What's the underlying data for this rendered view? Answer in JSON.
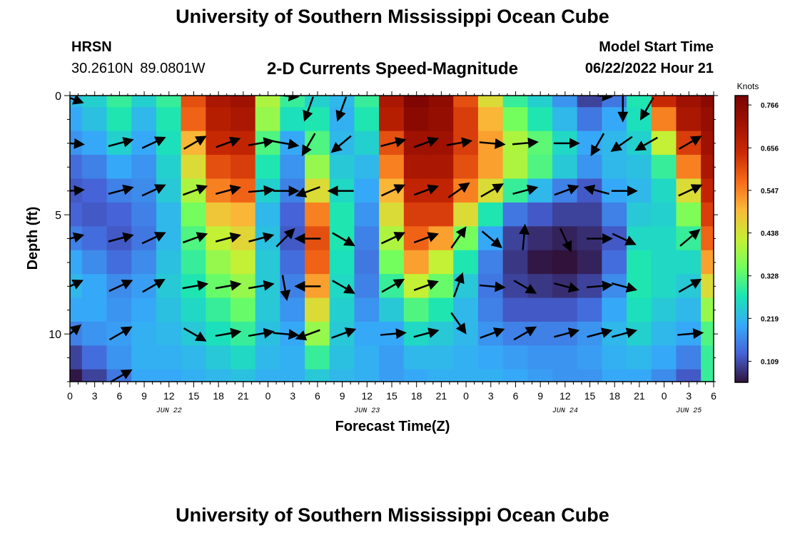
{
  "header": {
    "title": "University of Southern Mississippi Ocean Cube",
    "station": "HRSN",
    "coordinates": "30.2610N  89.0801W",
    "subtitle": "2-D Currents Speed-Magnitude",
    "model_start_label": "Model Start Time",
    "model_start_value": "06/22/2022 Hour 21"
  },
  "footer": {
    "title": "University of Southern Mississippi Ocean Cube"
  },
  "chart_data": {
    "type": "heatmap",
    "title": "2-D Currents Speed-Magnitude",
    "xlabel": "Forecast Time(Z)",
    "ylabel": "Depth (ft)",
    "x_units": "hours since Jun 22 00Z",
    "xlim": [
      0,
      78
    ],
    "ylim": [
      0,
      12
    ],
    "x_ticks": [
      0,
      3,
      6,
      9,
      12,
      15,
      18,
      21,
      24,
      27,
      30,
      33,
      36,
      39,
      42,
      45,
      48,
      51,
      54,
      57,
      60,
      63,
      66,
      69,
      72,
      75,
      78
    ],
    "x_tick_labels": [
      "0",
      "3",
      "6",
      "9",
      "12",
      "15",
      "18",
      "21",
      "0",
      "3",
      "6",
      "9",
      "12",
      "15",
      "18",
      "21",
      "0",
      "3",
      "6",
      "9",
      "12",
      "15",
      "18",
      "21",
      "0",
      "3",
      "6"
    ],
    "date_labels": [
      {
        "text": "JUN 22",
        "x": 12
      },
      {
        "text": "JUN 23",
        "x": 36
      },
      {
        "text": "JUN 24",
        "x": 60
      },
      {
        "text": "JUN 25",
        "x": 75
      }
    ],
    "y_ticks": [
      0,
      5,
      10
    ],
    "y_tick_labels": [
      "0",
      "5",
      "10"
    ],
    "colorbar": {
      "units": "Knots",
      "min": 0.055,
      "max": 0.79,
      "tick_values": [
        0.766,
        0.656,
        0.547,
        0.438,
        0.328,
        0.219,
        0.109
      ],
      "tick_labels": [
        "0.766",
        "0.656",
        "0.547",
        "0.438",
        "0.328",
        "0.219",
        "0.109"
      ]
    },
    "speed_grid": {
      "times": [
        0,
        3,
        6,
        9,
        12,
        15,
        18,
        21,
        24,
        27,
        30,
        33,
        36,
        39,
        42,
        45,
        48,
        51,
        54,
        57,
        60,
        63,
        66,
        69,
        72,
        75,
        78
      ],
      "depths": [
        0,
        1,
        2,
        3,
        4,
        5,
        6,
        7,
        8,
        9,
        10,
        11,
        12
      ],
      "values": [
        [
          0.22,
          0.25,
          0.3,
          0.25,
          0.3,
          0.6,
          0.7,
          0.72,
          0.4,
          0.3,
          0.25,
          0.22,
          0.3,
          0.7,
          0.78,
          0.75,
          0.6,
          0.45,
          0.3,
          0.25,
          0.18,
          0.1,
          0.15,
          0.28,
          0.65,
          0.72,
          0.76
        ],
        [
          0.2,
          0.23,
          0.28,
          0.22,
          0.28,
          0.58,
          0.68,
          0.7,
          0.38,
          0.27,
          0.28,
          0.21,
          0.28,
          0.68,
          0.76,
          0.74,
          0.62,
          0.5,
          0.35,
          0.28,
          0.22,
          0.15,
          0.2,
          0.27,
          0.55,
          0.7,
          0.74
        ],
        [
          0.18,
          0.2,
          0.25,
          0.2,
          0.27,
          0.5,
          0.65,
          0.66,
          0.32,
          0.2,
          0.32,
          0.22,
          0.25,
          0.6,
          0.72,
          0.72,
          0.62,
          0.52,
          0.4,
          0.33,
          0.26,
          0.2,
          0.22,
          0.25,
          0.42,
          0.62,
          0.72
        ],
        [
          0.14,
          0.16,
          0.2,
          0.18,
          0.25,
          0.45,
          0.6,
          0.62,
          0.28,
          0.18,
          0.38,
          0.24,
          0.22,
          0.55,
          0.7,
          0.7,
          0.6,
          0.52,
          0.4,
          0.32,
          0.24,
          0.18,
          0.22,
          0.23,
          0.3,
          0.55,
          0.7
        ],
        [
          0.12,
          0.13,
          0.16,
          0.17,
          0.24,
          0.4,
          0.55,
          0.58,
          0.25,
          0.16,
          0.45,
          0.26,
          0.2,
          0.5,
          0.66,
          0.66,
          0.55,
          0.45,
          0.3,
          0.22,
          0.16,
          0.12,
          0.2,
          0.22,
          0.26,
          0.45,
          0.66
        ],
        [
          0.13,
          0.12,
          0.13,
          0.16,
          0.22,
          0.35,
          0.48,
          0.5,
          0.22,
          0.13,
          0.55,
          0.28,
          0.18,
          0.45,
          0.62,
          0.62,
          0.45,
          0.28,
          0.15,
          0.12,
          0.1,
          0.1,
          0.16,
          0.24,
          0.25,
          0.36,
          0.62
        ],
        [
          0.16,
          0.14,
          0.12,
          0.15,
          0.22,
          0.32,
          0.42,
          0.46,
          0.23,
          0.12,
          0.6,
          0.28,
          0.16,
          0.4,
          0.58,
          0.52,
          0.35,
          0.2,
          0.1,
          0.08,
          0.07,
          0.08,
          0.12,
          0.26,
          0.26,
          0.3,
          0.58
        ],
        [
          0.2,
          0.17,
          0.14,
          0.17,
          0.23,
          0.3,
          0.38,
          0.42,
          0.24,
          0.14,
          0.58,
          0.27,
          0.15,
          0.35,
          0.52,
          0.42,
          0.28,
          0.16,
          0.09,
          0.06,
          0.05,
          0.07,
          0.14,
          0.28,
          0.26,
          0.26,
          0.52
        ],
        [
          0.22,
          0.2,
          0.17,
          0.19,
          0.24,
          0.28,
          0.34,
          0.38,
          0.24,
          0.16,
          0.52,
          0.26,
          0.16,
          0.3,
          0.42,
          0.34,
          0.24,
          0.15,
          0.1,
          0.09,
          0.08,
          0.1,
          0.17,
          0.28,
          0.26,
          0.24,
          0.45
        ],
        [
          0.2,
          0.2,
          0.18,
          0.2,
          0.23,
          0.26,
          0.3,
          0.34,
          0.24,
          0.18,
          0.45,
          0.25,
          0.18,
          0.24,
          0.32,
          0.28,
          0.22,
          0.16,
          0.12,
          0.12,
          0.12,
          0.14,
          0.2,
          0.27,
          0.24,
          0.22,
          0.38
        ],
        [
          0.16,
          0.18,
          0.19,
          0.21,
          0.22,
          0.24,
          0.27,
          0.3,
          0.23,
          0.2,
          0.38,
          0.24,
          0.2,
          0.2,
          0.26,
          0.24,
          0.22,
          0.18,
          0.16,
          0.16,
          0.16,
          0.18,
          0.22,
          0.25,
          0.22,
          0.2,
          0.32
        ],
        [
          0.1,
          0.14,
          0.18,
          0.21,
          0.21,
          0.22,
          0.24,
          0.26,
          0.22,
          0.21,
          0.3,
          0.23,
          0.21,
          0.19,
          0.22,
          0.22,
          0.21,
          0.2,
          0.19,
          0.18,
          0.18,
          0.19,
          0.21,
          0.22,
          0.2,
          0.16,
          0.3
        ],
        [
          0.06,
          0.1,
          0.15,
          0.2,
          0.2,
          0.21,
          0.22,
          0.23,
          0.21,
          0.21,
          0.24,
          0.22,
          0.21,
          0.19,
          0.2,
          0.21,
          0.21,
          0.21,
          0.2,
          0.19,
          0.18,
          0.18,
          0.2,
          0.2,
          0.17,
          0.12,
          0.3
        ]
      ]
    },
    "vectors": [
      {
        "t": 0,
        "d": 0.1,
        "dir": 110
      },
      {
        "t": 0,
        "d": 2,
        "dir": 95
      },
      {
        "t": 0,
        "d": 4,
        "dir": 85
      },
      {
        "t": 0,
        "d": 6,
        "dir": 75
      },
      {
        "t": 0,
        "d": 8,
        "dir": 65
      },
      {
        "t": 0,
        "d": 10,
        "dir": 50
      },
      {
        "t": 6,
        "d": 2,
        "dir": 75
      },
      {
        "t": 6,
        "d": 4,
        "dir": 75
      },
      {
        "t": 6,
        "d": 6,
        "dir": 75
      },
      {
        "t": 6,
        "d": 8,
        "dir": 65
      },
      {
        "t": 6,
        "d": 10,
        "dir": 60
      },
      {
        "t": 6,
        "d": 11.8,
        "dir": 60
      },
      {
        "t": 10,
        "d": 2,
        "dir": 65
      },
      {
        "t": 10,
        "d": 4,
        "dir": 65
      },
      {
        "t": 10,
        "d": 6,
        "dir": 65
      },
      {
        "t": 10,
        "d": 8,
        "dir": 60
      },
      {
        "t": 15,
        "d": 2,
        "dir": 60
      },
      {
        "t": 15,
        "d": 4,
        "dir": 70
      },
      {
        "t": 15,
        "d": 6,
        "dir": 70
      },
      {
        "t": 15,
        "d": 8,
        "dir": 80
      },
      {
        "t": 15,
        "d": 10,
        "dir": 120
      },
      {
        "t": 19,
        "d": 2,
        "dir": 70
      },
      {
        "t": 19,
        "d": 4,
        "dir": 75
      },
      {
        "t": 19,
        "d": 6,
        "dir": 75
      },
      {
        "t": 19,
        "d": 8,
        "dir": 80
      },
      {
        "t": 19,
        "d": 10,
        "dir": 80
      },
      {
        "t": 23,
        "d": 2,
        "dir": 80
      },
      {
        "t": 23,
        "d": 4,
        "dir": 85
      },
      {
        "t": 23,
        "d": 6,
        "dir": 75
      },
      {
        "t": 23,
        "d": 8,
        "dir": 80
      },
      {
        "t": 23,
        "d": 10,
        "dir": 80
      },
      {
        "t": 26,
        "d": 0,
        "dir": 95
      },
      {
        "t": 26,
        "d": 2,
        "dir": 100
      },
      {
        "t": 26,
        "d": 4,
        "dir": 90
      },
      {
        "t": 26,
        "d": 6,
        "dir": 45
      },
      {
        "t": 26,
        "d": 8,
        "dir": 170
      },
      {
        "t": 26,
        "d": 10,
        "dir": 95
      },
      {
        "t": 29,
        "d": 0.5,
        "dir": 200
      },
      {
        "t": 29,
        "d": 2,
        "dir": 210
      },
      {
        "t": 29,
        "d": 4,
        "dir": 250
      },
      {
        "t": 29,
        "d": 6,
        "dir": 270
      },
      {
        "t": 29,
        "d": 8,
        "dir": 270
      },
      {
        "t": 29,
        "d": 10,
        "dir": 250
      },
      {
        "t": 33,
        "d": 0.5,
        "dir": 200
      },
      {
        "t": 33,
        "d": 2,
        "dir": 230
      },
      {
        "t": 33,
        "d": 4,
        "dir": 270
      },
      {
        "t": 33,
        "d": 6,
        "dir": 120
      },
      {
        "t": 33,
        "d": 8,
        "dir": 120
      },
      {
        "t": 33,
        "d": 10,
        "dir": 70
      },
      {
        "t": 39,
        "d": 2,
        "dir": 75
      },
      {
        "t": 39,
        "d": 4,
        "dir": 65
      },
      {
        "t": 39,
        "d": 6,
        "dir": 65
      },
      {
        "t": 39,
        "d": 8,
        "dir": 60
      },
      {
        "t": 39,
        "d": 10,
        "dir": 85
      },
      {
        "t": 43,
        "d": 2,
        "dir": 70
      },
      {
        "t": 43,
        "d": 4,
        "dir": 70
      },
      {
        "t": 43,
        "d": 6,
        "dir": 70
      },
      {
        "t": 43,
        "d": 8,
        "dir": 70
      },
      {
        "t": 43,
        "d": 10,
        "dir": 75
      },
      {
        "t": 47,
        "d": 2,
        "dir": 80
      },
      {
        "t": 47,
        "d": 4,
        "dir": 55
      },
      {
        "t": 47,
        "d": 6,
        "dir": 35
      },
      {
        "t": 47,
        "d": 8,
        "dir": 20
      },
      {
        "t": 47,
        "d": 9.5,
        "dir": 145
      },
      {
        "t": 51,
        "d": 2,
        "dir": 95
      },
      {
        "t": 51,
        "d": 4,
        "dir": 60
      },
      {
        "t": 51,
        "d": 6,
        "dir": 130
      },
      {
        "t": 51,
        "d": 8,
        "dir": 95
      },
      {
        "t": 51,
        "d": 10,
        "dir": 70
      },
      {
        "t": 55,
        "d": 2,
        "dir": 85
      },
      {
        "t": 55,
        "d": 4,
        "dir": 75
      },
      {
        "t": 55,
        "d": 6,
        "dir": 5
      },
      {
        "t": 55,
        "d": 8,
        "dir": 120
      },
      {
        "t": 55,
        "d": 10,
        "dir": 60
      },
      {
        "t": 60,
        "d": 2,
        "dir": 90
      },
      {
        "t": 60,
        "d": 4,
        "dir": 70
      },
      {
        "t": 60,
        "d": 6,
        "dir": 155
      },
      {
        "t": 60,
        "d": 8,
        "dir": 105
      },
      {
        "t": 60,
        "d": 10,
        "dir": 75
      },
      {
        "t": 64,
        "d": 0,
        "dir": 95
      },
      {
        "t": 64,
        "d": 2,
        "dir": 210
      },
      {
        "t": 64,
        "d": 4,
        "dir": 285
      },
      {
        "t": 64,
        "d": 6,
        "dir": 90
      },
      {
        "t": 64,
        "d": 8,
        "dir": 85
      },
      {
        "t": 64,
        "d": 10,
        "dir": 75
      },
      {
        "t": 67,
        "d": 0.5,
        "dir": 180
      },
      {
        "t": 67,
        "d": 2,
        "dir": 235
      },
      {
        "t": 67,
        "d": 4,
        "dir": 90
      },
      {
        "t": 67,
        "d": 6,
        "dir": 115
      },
      {
        "t": 67,
        "d": 8,
        "dir": 105
      },
      {
        "t": 67,
        "d": 10,
        "dir": 75
      },
      {
        "t": 70,
        "d": 0.5,
        "dir": 210
      },
      {
        "t": 70,
        "d": 2,
        "dir": 240
      },
      {
        "t": 75,
        "d": 2,
        "dir": 60
      },
      {
        "t": 75,
        "d": 4,
        "dir": 65
      },
      {
        "t": 75,
        "d": 6,
        "dir": 50
      },
      {
        "t": 75,
        "d": 8,
        "dir": 60
      },
      {
        "t": 75,
        "d": 10,
        "dir": 85
      }
    ]
  }
}
